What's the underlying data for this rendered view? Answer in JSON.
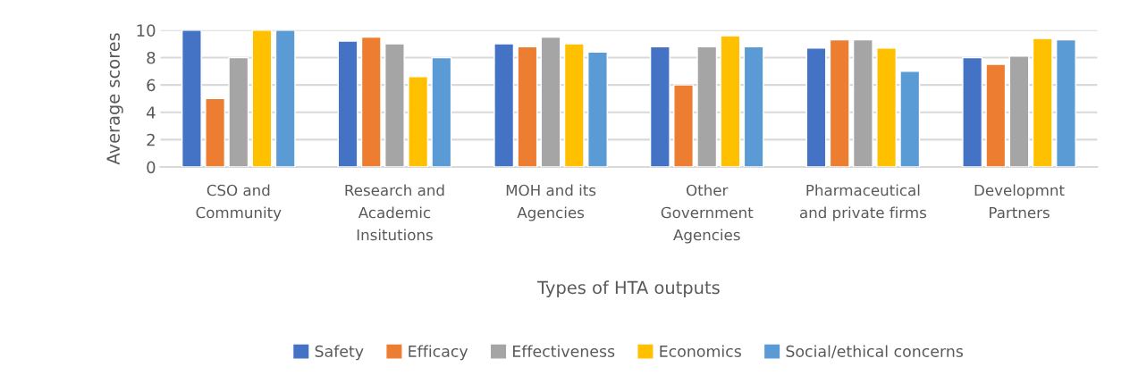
{
  "chart_data": {
    "type": "bar",
    "xlabel": "Types of HTA outputs",
    "ylabel": "Average scores",
    "categories": [
      "CSO and\nCommunity",
      "Research and\nAcademic\nInsitutions",
      "MOH and its\nAgencies",
      "Other\nGovernment\nAgencies",
      "Pharmaceutical\nand private firms",
      "Developmnt\nPartners"
    ],
    "series": [
      {
        "name": "Safety",
        "color": "#4472c4",
        "values": [
          10,
          9.2,
          9.0,
          8.8,
          8.7,
          8.0
        ]
      },
      {
        "name": "Efficacy",
        "color": "#ed7d31",
        "values": [
          5,
          9.5,
          8.8,
          6.0,
          9.3,
          7.5
        ]
      },
      {
        "name": "Effectiveness",
        "color": "#a5a5a5",
        "values": [
          8,
          9.0,
          9.5,
          8.8,
          9.3,
          8.1
        ]
      },
      {
        "name": "Economics",
        "color": "#ffc000",
        "values": [
          10,
          6.6,
          9.0,
          9.6,
          8.7,
          9.4
        ]
      },
      {
        "name": "Social/ethical concerns",
        "color": "#5b9bd5",
        "values": [
          10,
          8.0,
          8.4,
          8.8,
          7.0,
          9.3
        ]
      }
    ],
    "ylim": [
      0,
      10
    ],
    "yticks": [
      0,
      2,
      4,
      6,
      8,
      10
    ],
    "grid": "y",
    "legend": "bottom"
  }
}
